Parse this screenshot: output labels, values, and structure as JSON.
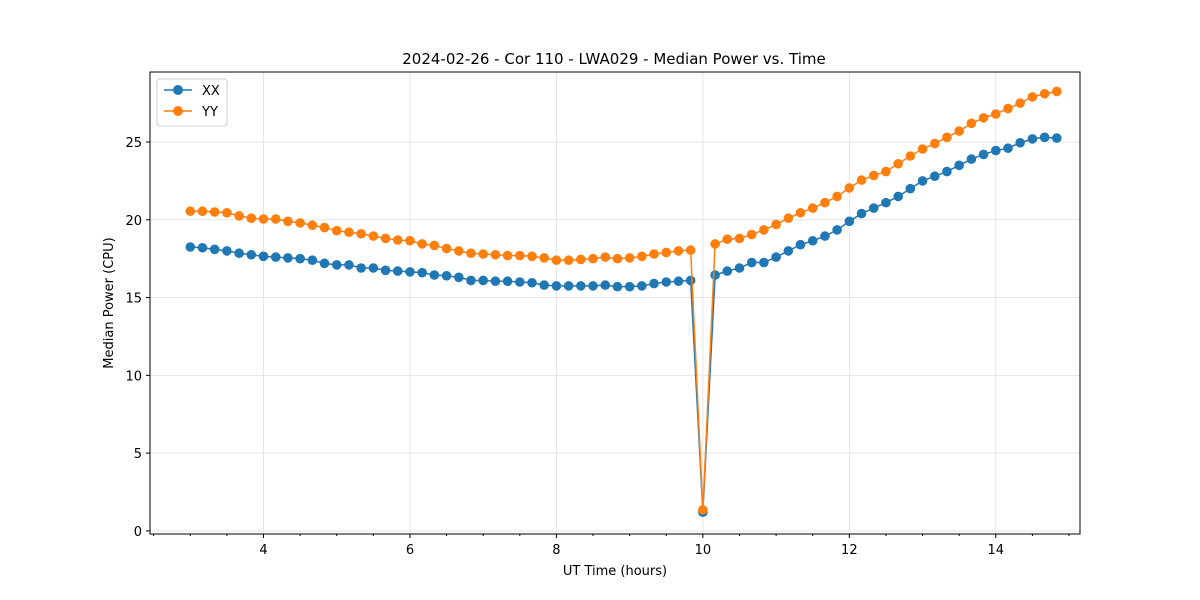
{
  "chart_data": {
    "type": "line",
    "title": "2024-02-26 - Cor 110 - LWA029 - Median Power vs. Time",
    "xlabel": "UT Time (hours)",
    "ylabel": "Median Power (CPU)",
    "xlim": [
      2.45,
      15.15
    ],
    "ylim": [
      -0.2,
      29.5
    ],
    "xticks": [
      4,
      6,
      8,
      10,
      12,
      14
    ],
    "xtick_labels": [
      "4",
      "6",
      "8",
      "10",
      "12",
      "14"
    ],
    "yticks": [
      0,
      5,
      10,
      15,
      20,
      25
    ],
    "ytick_labels": [
      "0",
      "5",
      "10",
      "15",
      "20",
      "25"
    ],
    "grid": true,
    "legend": "top-left",
    "x": [
      3.0,
      3.167,
      3.333,
      3.5,
      3.667,
      3.833,
      4.0,
      4.167,
      4.333,
      4.5,
      4.667,
      4.833,
      5.0,
      5.167,
      5.333,
      5.5,
      5.667,
      5.833,
      6.0,
      6.167,
      6.333,
      6.5,
      6.667,
      6.833,
      7.0,
      7.167,
      7.333,
      7.5,
      7.667,
      7.833,
      8.0,
      8.167,
      8.333,
      8.5,
      8.667,
      8.833,
      9.0,
      9.167,
      9.333,
      9.5,
      9.667,
      9.833,
      10.0,
      10.167,
      10.333,
      10.5,
      10.667,
      10.833,
      11.0,
      11.167,
      11.333,
      11.5,
      11.667,
      11.833,
      12.0,
      12.167,
      12.333,
      12.5,
      12.667,
      12.833,
      13.0,
      13.167,
      13.333,
      13.5,
      13.667,
      13.833,
      14.0,
      14.167,
      14.333,
      14.5,
      14.667,
      14.833
    ],
    "series": [
      {
        "name": "XX",
        "color": "#1f77b4",
        "values": [
          18.25,
          18.2,
          18.1,
          18.0,
          17.85,
          17.75,
          17.65,
          17.6,
          17.55,
          17.5,
          17.4,
          17.2,
          17.1,
          17.1,
          16.9,
          16.9,
          16.75,
          16.7,
          16.65,
          16.6,
          16.45,
          16.4,
          16.3,
          16.1,
          16.1,
          16.05,
          16.05,
          16.0,
          15.95,
          15.8,
          15.75,
          15.75,
          15.75,
          15.75,
          15.8,
          15.7,
          15.7,
          15.75,
          15.9,
          16.0,
          16.05,
          16.1,
          1.2,
          16.45,
          16.7,
          16.9,
          17.25,
          17.25,
          17.6,
          18.0,
          18.4,
          18.65,
          18.95,
          19.35,
          19.9,
          20.4,
          20.75,
          21.1,
          21.5,
          22.0,
          22.5,
          22.8,
          23.1,
          23.5,
          23.9,
          24.2,
          24.45,
          24.6,
          24.95,
          25.2,
          25.3,
          25.25
        ]
      },
      {
        "name": "YY",
        "color": "#ff7f0e",
        "values": [
          20.55,
          20.55,
          20.5,
          20.45,
          20.25,
          20.1,
          20.05,
          20.05,
          19.9,
          19.8,
          19.65,
          19.5,
          19.3,
          19.2,
          19.1,
          18.95,
          18.8,
          18.7,
          18.65,
          18.45,
          18.35,
          18.15,
          18.0,
          17.85,
          17.8,
          17.75,
          17.7,
          17.7,
          17.65,
          17.55,
          17.4,
          17.4,
          17.45,
          17.5,
          17.6,
          17.5,
          17.55,
          17.65,
          17.8,
          17.9,
          18.0,
          18.05,
          1.35,
          18.45,
          18.75,
          18.8,
          19.05,
          19.35,
          19.7,
          20.1,
          20.45,
          20.75,
          21.1,
          21.5,
          22.05,
          22.55,
          22.85,
          23.1,
          23.6,
          24.1,
          24.55,
          24.9,
          25.3,
          25.7,
          26.2,
          26.55,
          26.8,
          27.15,
          27.5,
          27.9,
          28.1,
          28.25
        ]
      }
    ]
  }
}
